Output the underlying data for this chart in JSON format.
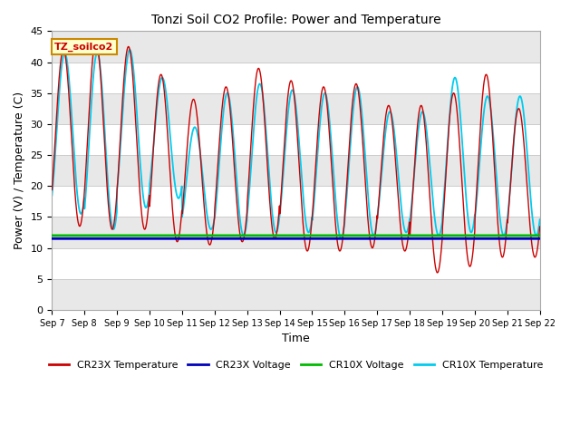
{
  "title": "Tonzi Soil CO2 Profile: Power and Temperature",
  "xlabel": "Time",
  "ylabel": "Power (V) / Temperature (C)",
  "annotation": "TZ_soilco2",
  "ylim": [
    0,
    45
  ],
  "total_days": 15,
  "cr23x_voltage_value": 11.5,
  "cr10x_voltage_value": 12.0,
  "colors": {
    "cr23x_temp": "#cc0000",
    "cr23x_voltage": "#0000bb",
    "cr10x_voltage": "#00bb00",
    "cr10x_temp": "#00ccee",
    "annotation_bg": "#ffffcc",
    "annotation_border": "#cc8800",
    "annotation_text": "#cc0000",
    "figure_bg": "#ffffff",
    "plot_bg": "#ffffff",
    "grid_color": "#cccccc"
  },
  "legend_labels": [
    "CR23X Temperature",
    "CR23X Voltage",
    "CR10X Voltage",
    "CR10X Temperature"
  ],
  "x_tick_labels": [
    "Sep 7",
    "Sep 8",
    "Sep 9",
    "Sep 10",
    "Sep 11",
    "Sep 12",
    "Sep 13",
    "Sep 14",
    "Sep 15",
    "Sep 16",
    "Sep 17",
    "Sep 18",
    "Sep 19",
    "Sep 20",
    "Sep 21",
    "Sep 22"
  ],
  "peaks_cr23x": [
    42.0,
    43.5,
    42.5,
    38.0,
    34.0,
    36.0,
    39.0,
    37.0,
    36.0,
    36.5,
    33.0,
    33.0,
    35.0,
    38.0,
    32.5
  ],
  "mins_cr23x": [
    13.5,
    13.0,
    13.0,
    11.0,
    10.5,
    11.0,
    11.5,
    9.5,
    9.5,
    10.0,
    9.5,
    6.0,
    7.0,
    8.5,
    8.5
  ],
  "peaks_cr10x": [
    41.5,
    41.5,
    42.0,
    37.5,
    29.5,
    35.0,
    36.5,
    35.5,
    35.0,
    36.0,
    32.0,
    32.0,
    37.5,
    34.5,
    34.5
  ],
  "mins_cr10x": [
    15.5,
    13.0,
    16.5,
    18.0,
    13.0,
    12.0,
    12.5,
    12.5,
    11.5,
    12.0,
    12.5,
    12.0,
    12.5,
    12.0,
    12.0
  ]
}
